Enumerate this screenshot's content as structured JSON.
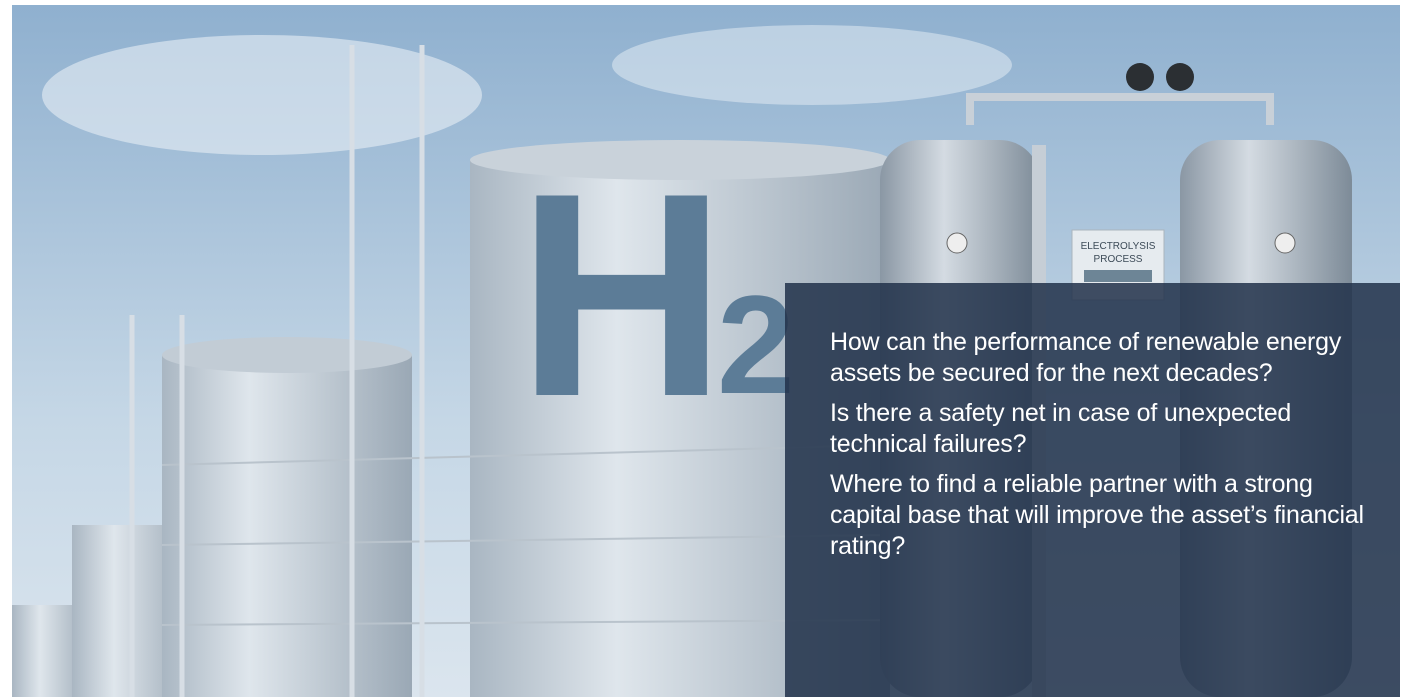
{
  "image": {
    "labels": [
      "H",
      "2",
      "ELECTROLYSIS",
      "PROCESS"
    ]
  },
  "overlay": {
    "questions": [
      "How can the performance of renewable energy assets be secured for the next decades?",
      "Is there a safety net in case of unexpected technical failures?",
      "Where to find a reliable partner with a strong capital base that will improve the asset’s financial rating?"
    ]
  }
}
